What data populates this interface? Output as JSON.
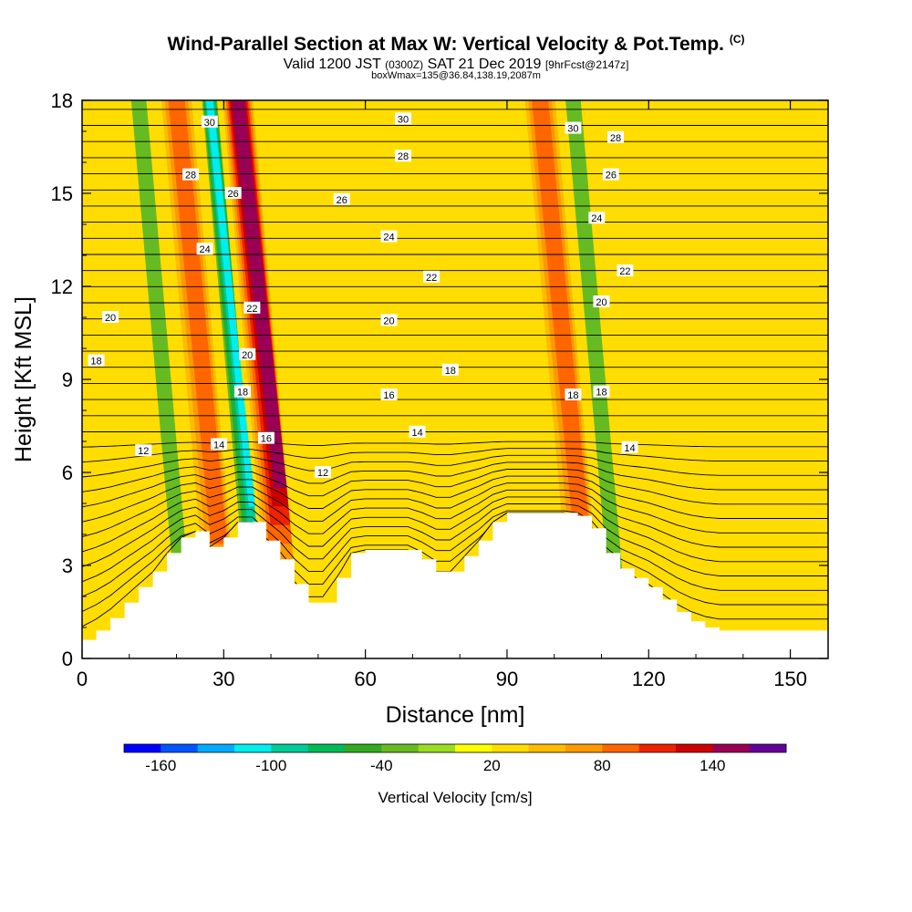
{
  "header": {
    "title": "Wind-Parallel Section at Max W: Vertical Velocity & Pot.Temp.",
    "copyright": "(C)",
    "valid_prefix": "Valid 1200 JST",
    "valid_z": "(0300Z)",
    "valid_date": "SAT 21 Dec 2019",
    "fcst": "[9hrFcst@2147z]",
    "box": "boxWmax=135@36.84,138.19,2087m"
  },
  "chart_data": {
    "type": "heatmap",
    "title": "Wind-Parallel Section at Max W: Vertical Velocity & Pot.Temp.",
    "xlabel": "Distance [nm]",
    "ylabel": "Height [Kft MSL]",
    "xlim": [
      0,
      158
    ],
    "ylim": [
      0,
      18
    ],
    "xticks": [
      0,
      30,
      60,
      90,
      120,
      150
    ],
    "yticks": [
      0,
      3,
      6,
      9,
      12,
      15,
      18
    ],
    "background_w": 20,
    "updraft_bands": [
      {
        "x_low": 40,
        "x_high": 44,
        "peak_w": 150
      },
      {
        "x_low": 27,
        "x_high": 31,
        "peak_w": 90
      },
      {
        "x_low": 104,
        "x_high": 108,
        "peak_w": 90
      }
    ],
    "downdraft_bands": [
      {
        "x_low": 35,
        "x_high": 37,
        "peak_w": -130
      },
      {
        "x_low": 20,
        "x_high": 22,
        "peak_w": -40
      },
      {
        "x_low": 112,
        "x_high": 114,
        "peak_w": -40
      }
    ],
    "terrain": {
      "x": [
        0,
        3,
        6,
        9,
        12,
        15,
        18,
        21,
        24,
        27,
        30,
        33,
        36,
        39,
        42,
        45,
        48,
        51,
        54,
        57,
        60,
        63,
        66,
        69,
        72,
        75,
        78,
        81,
        84,
        87,
        90,
        93,
        96,
        99,
        102,
        105,
        108,
        111,
        114,
        117,
        120,
        123,
        126,
        129,
        132,
        135,
        138,
        141,
        144,
        147,
        150,
        153,
        158
      ],
      "height_kft": [
        0.6,
        0.9,
        1.3,
        1.8,
        2.3,
        2.8,
        3.4,
        3.9,
        4.1,
        3.6,
        3.9,
        4.4,
        4.4,
        3.8,
        3.2,
        2.4,
        1.8,
        1.8,
        2.6,
        3.4,
        3.5,
        3.5,
        3.5,
        3.5,
        3.2,
        2.8,
        2.8,
        3.3,
        3.8,
        4.4,
        4.7,
        4.7,
        4.7,
        4.7,
        4.7,
        4.6,
        4.2,
        3.4,
        2.9,
        2.6,
        2.3,
        1.9,
        1.5,
        1.2,
        1.0,
        0.9,
        0.9,
        0.9,
        0.9,
        0.9,
        0.9,
        0.9,
        0.9
      ]
    },
    "theta_contours": {
      "levels": [
        12,
        14,
        16,
        18,
        20,
        22,
        24,
        26,
        28,
        30
      ],
      "labels": [
        {
          "text": "12",
          "x": 13,
          "y": 6.7
        },
        {
          "text": "12",
          "x": 51,
          "y": 6.0
        },
        {
          "text": "14",
          "x": 29,
          "y": 6.9
        },
        {
          "text": "14",
          "x": 71,
          "y": 7.3
        },
        {
          "text": "14",
          "x": 116,
          "y": 6.8
        },
        {
          "text": "16",
          "x": 39,
          "y": 7.1
        },
        {
          "text": "16",
          "x": 65,
          "y": 8.5
        },
        {
          "text": "18",
          "x": 3,
          "y": 9.6
        },
        {
          "text": "18",
          "x": 34,
          "y": 8.6
        },
        {
          "text": "18",
          "x": 78,
          "y": 9.3
        },
        {
          "text": "18",
          "x": 104,
          "y": 8.5
        },
        {
          "text": "18",
          "x": 110,
          "y": 8.6
        },
        {
          "text": "20",
          "x": 6,
          "y": 11.0
        },
        {
          "text": "20",
          "x": 35,
          "y": 9.8
        },
        {
          "text": "20",
          "x": 65,
          "y": 10.9
        },
        {
          "text": "20",
          "x": 110,
          "y": 11.5
        },
        {
          "text": "22",
          "x": 36,
          "y": 11.3
        },
        {
          "text": "22",
          "x": 74,
          "y": 12.3
        },
        {
          "text": "22",
          "x": 115,
          "y": 12.5
        },
        {
          "text": "24",
          "x": 26,
          "y": 13.2
        },
        {
          "text": "24",
          "x": 65,
          "y": 13.6
        },
        {
          "text": "24",
          "x": 109,
          "y": 14.2
        },
        {
          "text": "26",
          "x": 32,
          "y": 15.0
        },
        {
          "text": "26",
          "x": 55,
          "y": 14.8
        },
        {
          "text": "26",
          "x": 112,
          "y": 15.6
        },
        {
          "text": "28",
          "x": 23,
          "y": 15.6
        },
        {
          "text": "28",
          "x": 68,
          "y": 16.2
        },
        {
          "text": "28",
          "x": 113,
          "y": 16.8
        },
        {
          "text": "30",
          "x": 27,
          "y": 17.3
        },
        {
          "text": "30",
          "x": 68,
          "y": 17.4
        },
        {
          "text": "30",
          "x": 104,
          "y": 17.1
        }
      ]
    },
    "colorbar": {
      "title": "Vertical Velocity [cm/s]",
      "boundaries": [
        -180,
        -160,
        -140,
        -120,
        -100,
        -80,
        -60,
        -40,
        -20,
        0,
        20,
        40,
        60,
        80,
        100,
        120,
        140,
        160,
        180
      ],
      "colors": [
        "#0000ff",
        "#0055ff",
        "#00aaff",
        "#00eeee",
        "#00cc99",
        "#00bb55",
        "#33aa22",
        "#66bb22",
        "#99dd22",
        "#ffff00",
        "#ffdd00",
        "#ffbb00",
        "#ff9900",
        "#ff6600",
        "#ee2200",
        "#cc0000",
        "#990055",
        "#660099"
      ],
      "tick_labels": [
        "-160",
        "-100",
        "-40",
        "20",
        "80",
        "140"
      ]
    }
  }
}
